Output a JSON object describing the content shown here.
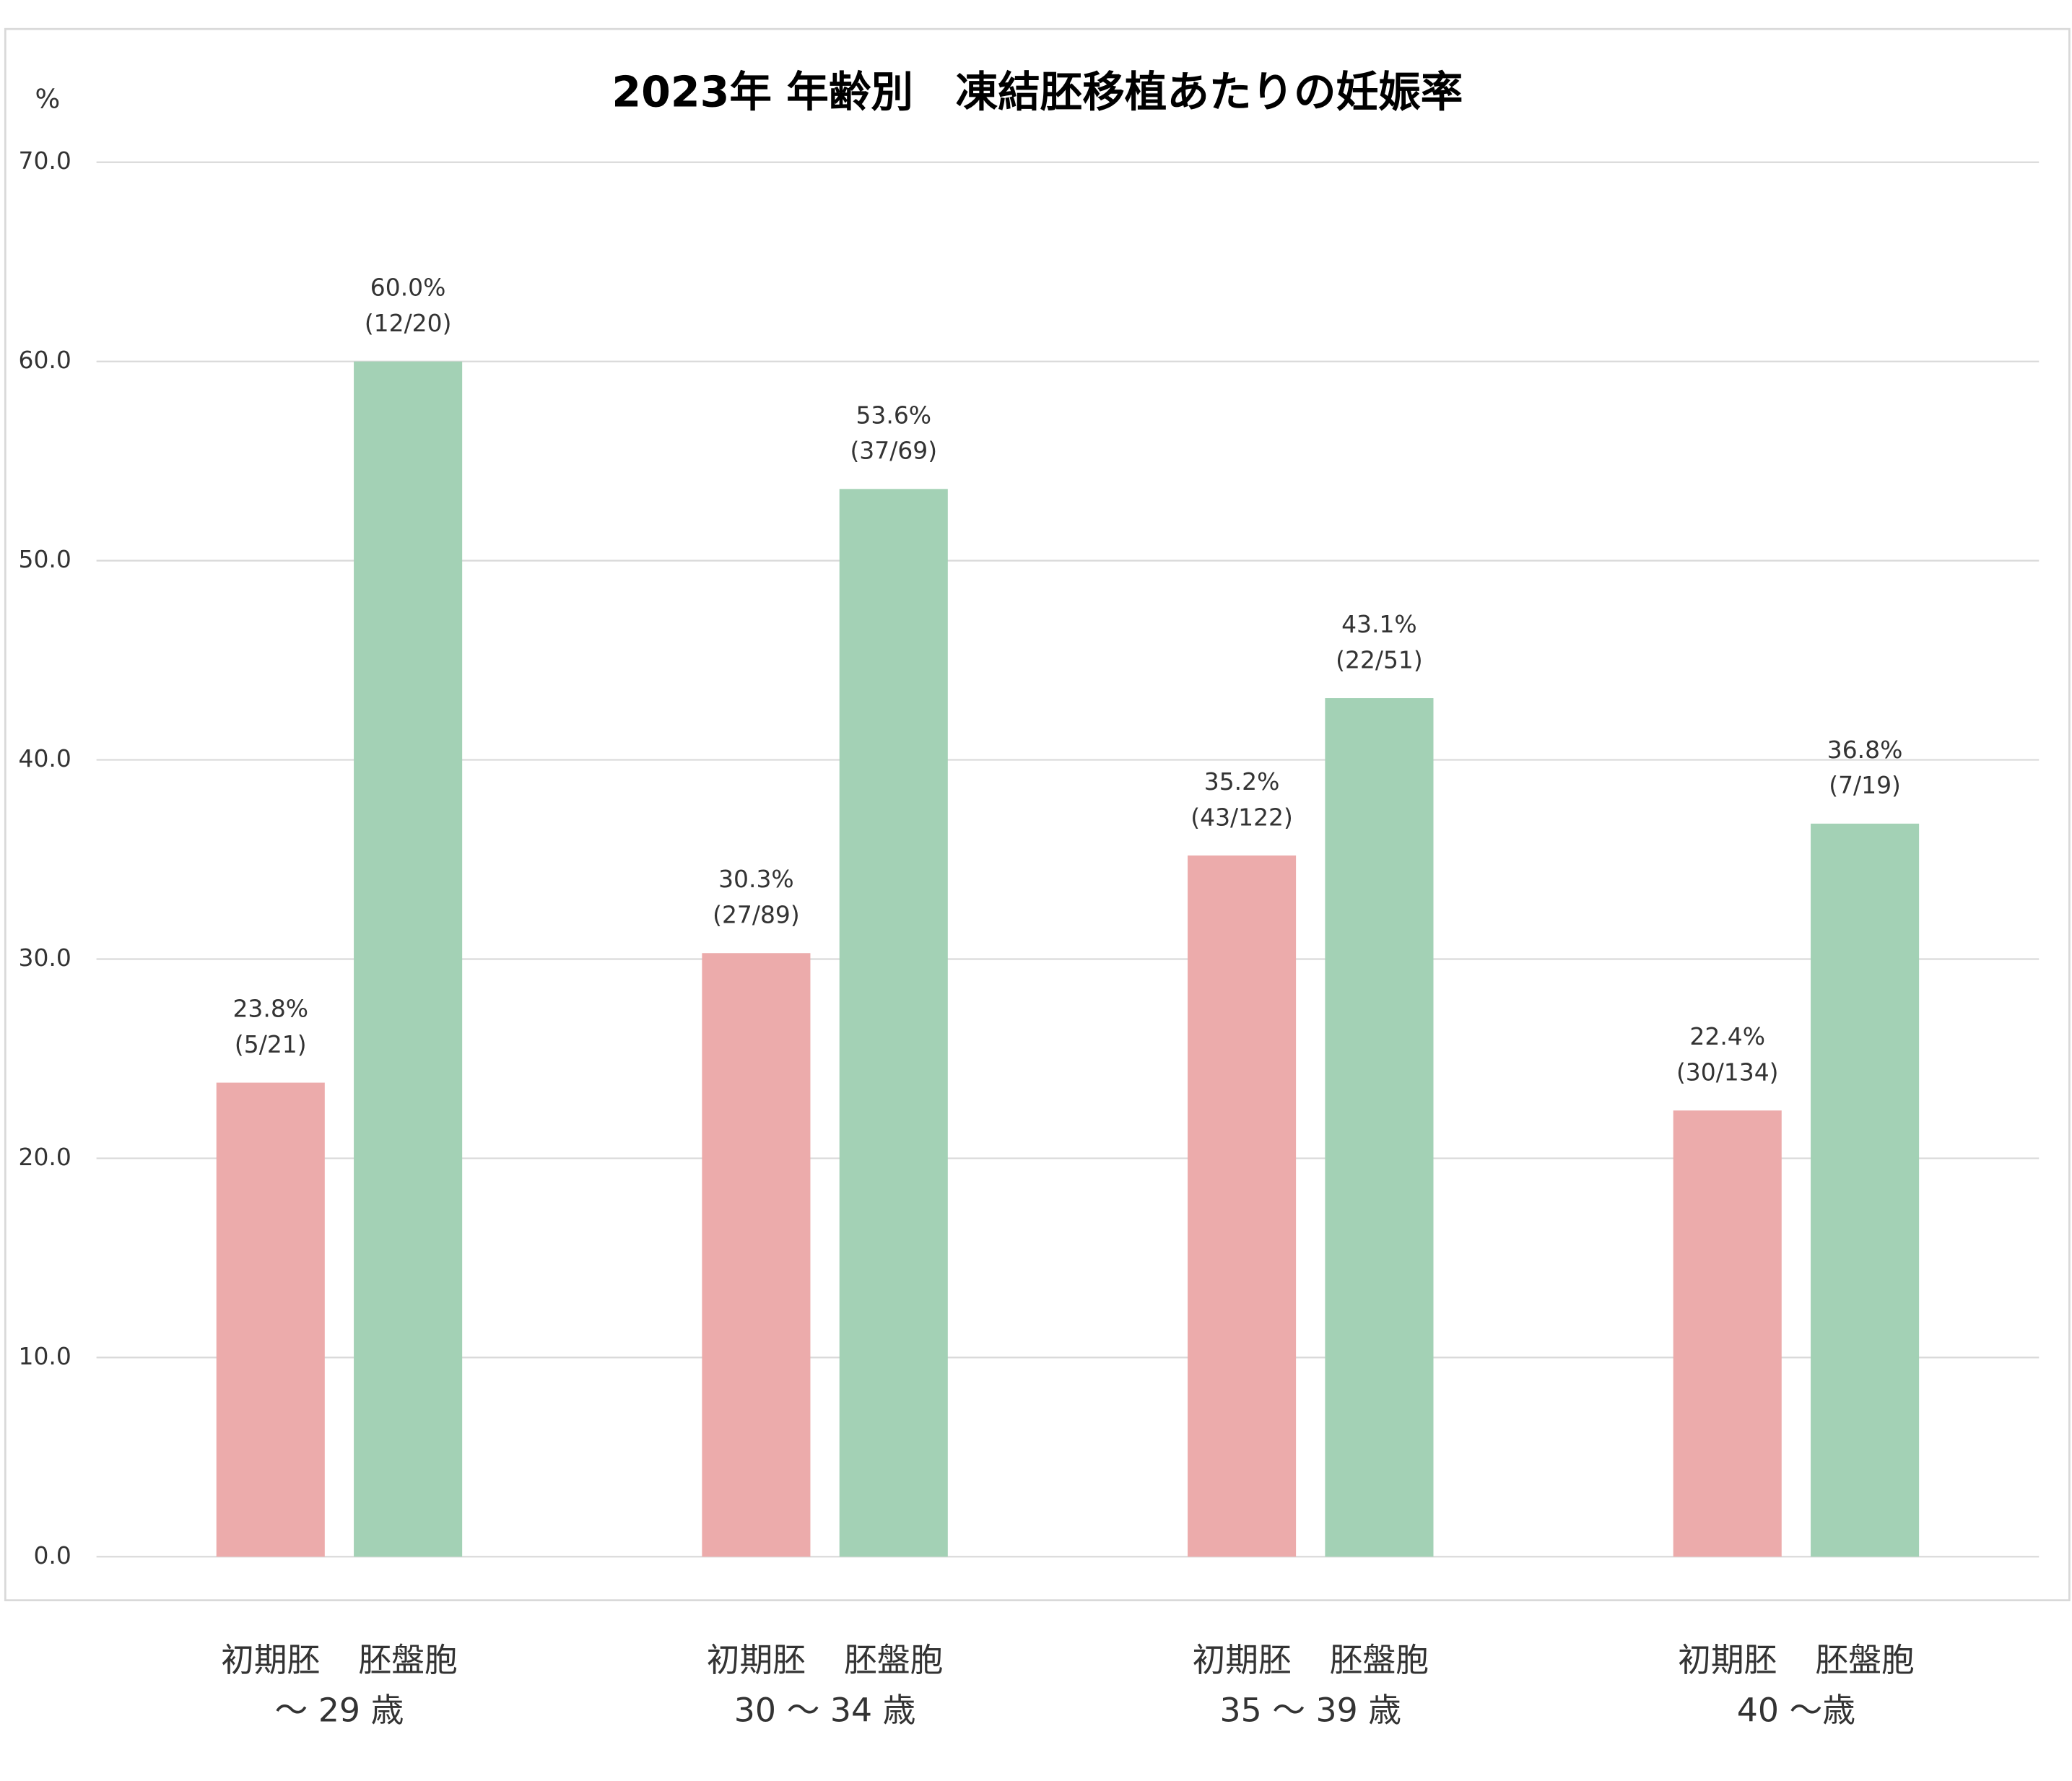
{
  "chart_data": {
    "type": "bar",
    "title": "2023年 年齢別　凍結胚移植あたりの妊娠率",
    "y_label": "%",
    "categories": [
      "〜 29 歳",
      "30 〜 34 歳",
      "35 〜 39 歳",
      "40 〜歳"
    ],
    "series": [
      {
        "name": "初期胚",
        "color": "#ecabab",
        "values": [
          23.8,
          30.3,
          35.2,
          22.4
        ],
        "value_labels": [
          "23.8%",
          "30.3%",
          "35.2%",
          "22.4%"
        ],
        "fractions": [
          "(5/21)",
          "(27/89)",
          "(43/122)",
          "(30/134)"
        ]
      },
      {
        "name": "胚盤胞",
        "color": "#a3d1b5",
        "values": [
          60.0,
          53.6,
          43.1,
          36.8
        ],
        "value_labels": [
          "60.0%",
          "53.6%",
          "43.1%",
          "36.8%"
        ],
        "fractions": [
          "(12/20)",
          "(37/69)",
          "(22/51)",
          "(7/19)"
        ]
      }
    ],
    "ylim": [
      0,
      70
    ],
    "yticks": [
      {
        "value": 0,
        "label": "0.0"
      },
      {
        "value": 10,
        "label": "10.0"
      },
      {
        "value": 20,
        "label": "20.0"
      },
      {
        "value": 30,
        "label": "30.0"
      },
      {
        "value": 40,
        "label": "40.0"
      },
      {
        "value": 50,
        "label": "50.0"
      },
      {
        "value": 60,
        "label": "60.0"
      },
      {
        "value": 70,
        "label": "70.0"
      }
    ],
    "grid": true
  }
}
